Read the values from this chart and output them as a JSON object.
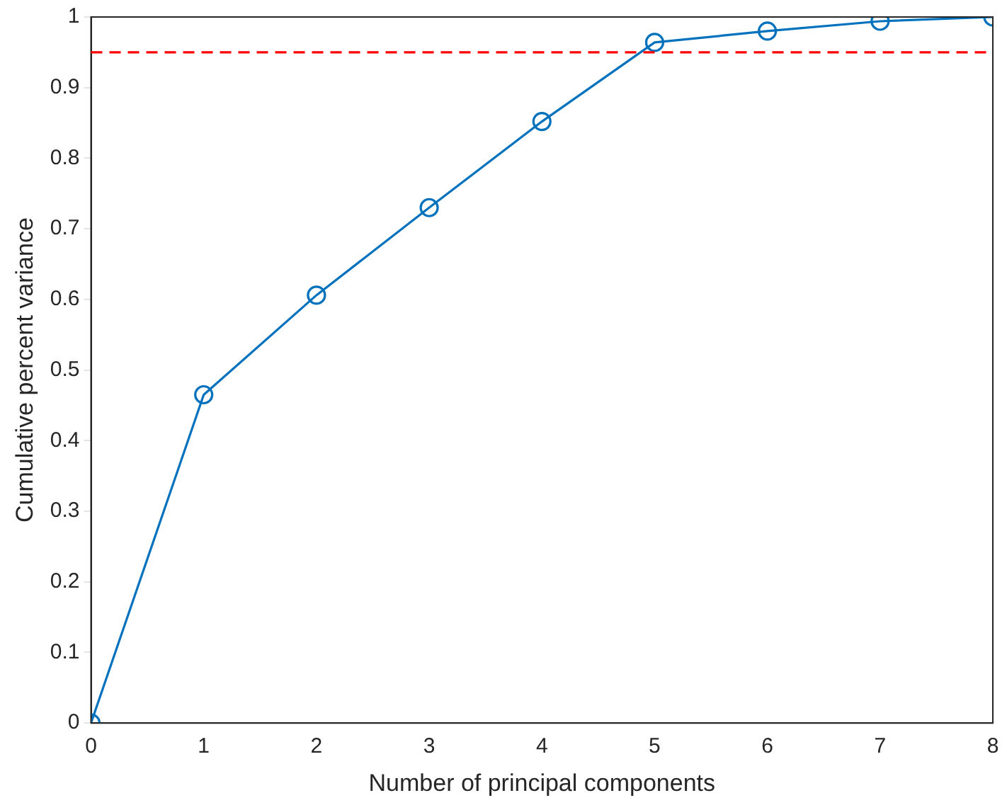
{
  "chart_data": {
    "type": "line",
    "xlabel": "Number of principal components",
    "ylabel": "Cumulative percent variance",
    "x": [
      0,
      1,
      2,
      3,
      4,
      5,
      6,
      7,
      8
    ],
    "series": [
      {
        "color": "#0072bd",
        "values": [
          0,
          0.465,
          0.606,
          0.73,
          0.852,
          0.964,
          0.98,
          0.994,
          1
        ]
      }
    ],
    "xlim": [
      0,
      8
    ],
    "xticks": [
      0,
      1,
      2,
      3,
      4,
      5,
      6,
      7,
      8
    ],
    "ylim": [
      0,
      1
    ],
    "yticks": [
      0,
      0.1,
      0.2,
      0.3,
      0.4,
      0.5,
      0.6,
      0.7,
      0.8,
      0.9,
      1
    ],
    "ref_lines": [
      {
        "axis": "y",
        "value": 0.95,
        "color": "#ff0000",
        "line_style": "dashed"
      }
    ],
    "marker": "circle",
    "line_style": "solid",
    "grid": false,
    "legend": false
  }
}
